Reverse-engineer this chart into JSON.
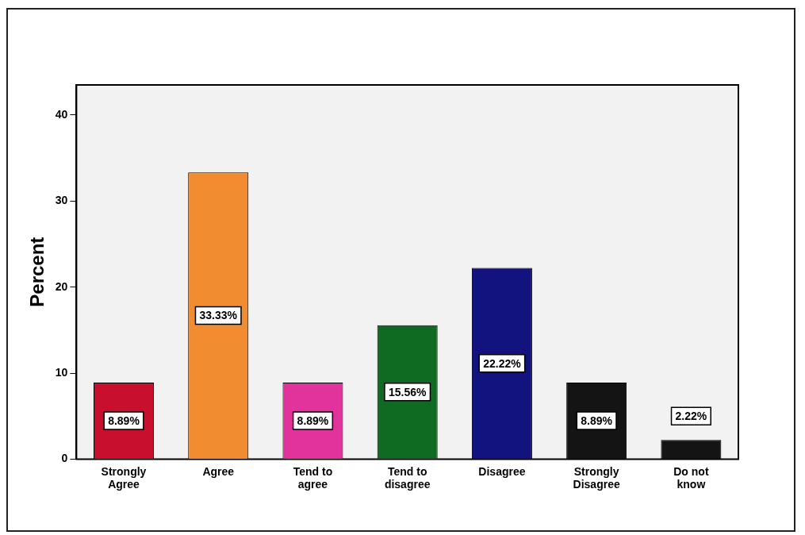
{
  "chart_data": {
    "type": "bar",
    "ylabel": "Percent",
    "categories": [
      "Strongly Agree",
      "Agree",
      "Tend to agree",
      "Tend to disagree",
      "Disagree",
      "Strongly Disagree",
      "Do not know"
    ],
    "values": [
      8.89,
      33.33,
      8.89,
      15.56,
      22.22,
      8.89,
      2.22
    ],
    "colors": [
      "#c8102e",
      "#f28c30",
      "#e2329c",
      "#0f6b22",
      "#12137f",
      "#141414",
      "#141414"
    ],
    "value_labels": [
      "8.89%",
      "33.33%",
      "8.89%",
      "15.56%",
      "22.22%",
      "8.89%",
      "2.22%"
    ],
    "ylim": [
      0,
      43.5
    ],
    "yticks": [
      0,
      10,
      20,
      30,
      40
    ],
    "legend": false
  }
}
